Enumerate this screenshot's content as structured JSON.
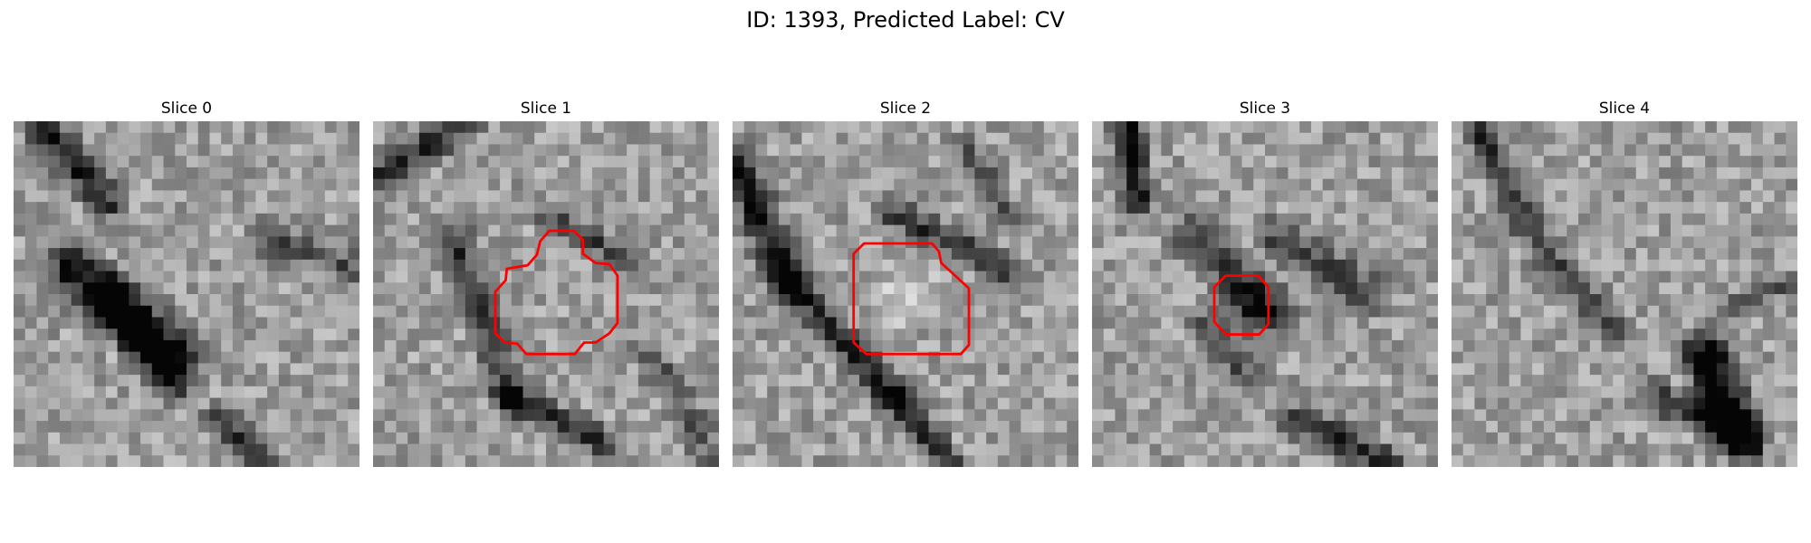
{
  "figure": {
    "title": "ID: 1393, Predicted Label: CV"
  },
  "slices": [
    {
      "title": "Slice 0",
      "has_contour": false
    },
    {
      "title": "Slice 1",
      "has_contour": true
    },
    {
      "title": "Slice 2",
      "has_contour": true
    },
    {
      "title": "Slice 3",
      "has_contour": true
    },
    {
      "title": "Slice 4",
      "has_contour": false
    }
  ],
  "colors": {
    "contour": "#ff0000",
    "background": "#ffffff"
  },
  "image_style": "grayscale pixelated microscopy patches"
}
